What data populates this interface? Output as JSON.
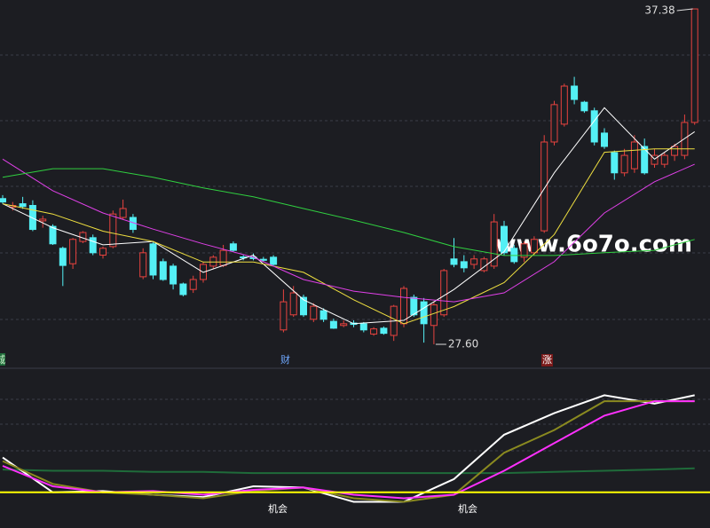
{
  "chart_data": {
    "type": "candlestick",
    "up_color": "#e8433f",
    "down_color": "#54f0f5",
    "ylim": [
      27.29,
      37.64
    ],
    "candles": [
      [
        31.85,
        31.95,
        31.7,
        31.75
      ],
      [
        31.6,
        31.75,
        31.5,
        31.65
      ],
      [
        31.7,
        31.9,
        31.55,
        31.62
      ],
      [
        31.65,
        31.8,
        30.9,
        30.95
      ],
      [
        31.2,
        31.35,
        31.0,
        31.25
      ],
      [
        31.04,
        31.1,
        30.5,
        30.53
      ],
      [
        30.4,
        30.45,
        29.3,
        29.9
      ],
      [
        29.95,
        30.7,
        29.8,
        30.66
      ],
      [
        30.6,
        30.9,
        30.55,
        30.86
      ],
      [
        30.71,
        30.8,
        30.2,
        30.27
      ],
      [
        30.2,
        30.45,
        30.1,
        30.4
      ],
      [
        30.45,
        31.5,
        30.4,
        31.4
      ],
      [
        31.3,
        31.82,
        31.25,
        31.56
      ],
      [
        31.3,
        31.4,
        30.85,
        30.95
      ],
      [
        29.57,
        30.4,
        29.5,
        30.27
      ],
      [
        30.53,
        30.6,
        29.5,
        29.62
      ],
      [
        30.01,
        30.1,
        29.45,
        29.49
      ],
      [
        29.88,
        29.95,
        29.2,
        29.36
      ],
      [
        29.36,
        29.4,
        29.0,
        29.05
      ],
      [
        29.2,
        29.6,
        29.1,
        29.49
      ],
      [
        29.49,
        30.0,
        29.4,
        29.93
      ],
      [
        29.88,
        30.2,
        29.8,
        30.14
      ],
      [
        29.9,
        30.5,
        29.85,
        30.34
      ],
      [
        30.53,
        30.6,
        30.3,
        30.34
      ],
      [
        30.15,
        30.2,
        30.05,
        30.12
      ],
      [
        30.14,
        30.25,
        30.05,
        30.1
      ],
      [
        30.08,
        30.15,
        30.0,
        30.05
      ],
      [
        30.14,
        30.2,
        29.9,
        29.93
      ],
      [
        28.02,
        29.2,
        27.95,
        28.84
      ],
      [
        28.46,
        29.3,
        28.4,
        29.1
      ],
      [
        28.97,
        29.05,
        28.4,
        28.46
      ],
      [
        28.33,
        28.8,
        28.25,
        28.71
      ],
      [
        28.58,
        28.65,
        28.25,
        28.33
      ],
      [
        28.27,
        28.35,
        28.05,
        28.07
      ],
      [
        28.15,
        28.3,
        28.1,
        28.2
      ],
      [
        28.22,
        28.3,
        28.1,
        28.18
      ],
      [
        28.2,
        28.25,
        27.95,
        28.02
      ],
      [
        27.9,
        28.1,
        27.85,
        28.05
      ],
      [
        28.07,
        28.12,
        27.88,
        27.92
      ],
      [
        27.86,
        28.75,
        27.7,
        28.71
      ],
      [
        28.2,
        29.3,
        28.1,
        29.23
      ],
      [
        28.97,
        29.05,
        28.4,
        28.46
      ],
      [
        28.84,
        28.95,
        27.65,
        28.2
      ],
      [
        28.15,
        28.85,
        27.6,
        28.75
      ],
      [
        28.46,
        29.8,
        28.4,
        29.75
      ],
      [
        30.09,
        30.7,
        29.85,
        29.93
      ],
      [
        30.01,
        30.2,
        29.7,
        29.83
      ],
      [
        29.93,
        30.2,
        29.8,
        30.09
      ],
      [
        29.75,
        30.15,
        29.7,
        30.09
      ],
      [
        29.88,
        31.4,
        29.8,
        31.17
      ],
      [
        31.04,
        31.2,
        30.2,
        30.27
      ],
      [
        30.4,
        30.5,
        29.95,
        30.01
      ],
      [
        30.14,
        30.6,
        30.0,
        30.53
      ],
      [
        30.27,
        30.75,
        30.2,
        30.66
      ],
      [
        30.91,
        33.7,
        30.85,
        33.5
      ],
      [
        33.5,
        34.7,
        33.4,
        34.59
      ],
      [
        34.02,
        35.2,
        33.95,
        35.13
      ],
      [
        35.13,
        35.4,
        34.6,
        34.74
      ],
      [
        34.66,
        34.7,
        34.35,
        34.41
      ],
      [
        34.41,
        34.5,
        33.4,
        33.5
      ],
      [
        33.76,
        33.9,
        33.3,
        33.37
      ],
      [
        33.19,
        33.25,
        32.4,
        32.6
      ],
      [
        32.6,
        33.3,
        32.5,
        33.11
      ],
      [
        32.72,
        33.7,
        32.6,
        33.5
      ],
      [
        33.37,
        33.6,
        32.55,
        32.6
      ],
      [
        32.85,
        33.3,
        32.75,
        33.11
      ],
      [
        32.85,
        33.2,
        32.75,
        33.11
      ],
      [
        33.11,
        33.45,
        32.95,
        33.37
      ],
      [
        33.11,
        34.3,
        33.0,
        34.07
      ],
      [
        34.07,
        37.38,
        34.0,
        37.38
      ]
    ],
    "x": [
      0,
      5,
      10,
      15,
      20,
      25,
      30,
      35,
      40,
      45,
      50,
      55,
      60,
      65,
      69
    ],
    "series": [
      {
        "color": "#ffffff",
        "values": [
          31.7,
          31.0,
          30.5,
          30.6,
          29.7,
          30.2,
          28.9,
          28.2,
          28.3,
          29.2,
          30.3,
          32.6,
          34.5,
          33.0,
          33.8
        ]
      },
      {
        "color": "#f0e040",
        "values": [
          31.7,
          31.4,
          30.9,
          30.6,
          30.0,
          30.0,
          29.7,
          28.9,
          28.2,
          28.7,
          29.4,
          30.8,
          33.2,
          33.3,
          33.3
        ]
      },
      {
        "color": "#e040e8",
        "values": [
          33.0,
          32.08,
          31.43,
          30.96,
          30.53,
          30.14,
          29.49,
          29.15,
          28.97,
          28.84,
          29.1,
          30.01,
          31.43,
          32.34,
          32.85
        ]
      },
      {
        "color": "#30d040",
        "values": [
          32.47,
          32.72,
          32.72,
          32.47,
          32.16,
          31.9,
          31.56,
          31.22,
          30.86,
          30.45,
          30.19,
          30.19,
          30.27,
          30.34,
          30.66
        ]
      }
    ],
    "extremes": [
      {
        "value": 37.38,
        "label": "37.38"
      },
      {
        "value": 27.6,
        "label": "27.60"
      }
    ],
    "watermark": "www.6o7o.com",
    "markers": [
      "城",
      "财",
      "涨"
    ],
    "lower": {
      "ylim": [
        0,
        100
      ],
      "series": [
        {
          "color": "#1f6b3a",
          "values": [
            34,
            33,
            33,
            32,
            32,
            31,
            31,
            31,
            31,
            31,
            31,
            32,
            33,
            34,
            35
          ]
        },
        {
          "color": "#ffffff",
          "values": [
            44,
            15,
            16,
            13,
            11,
            20,
            19,
            7,
            7,
            26,
            63,
            81,
            96,
            89,
            96
          ]
        },
        {
          "color": "#8a8a20",
          "values": [
            41,
            22,
            15,
            13,
            10,
            16,
            19,
            10,
            7,
            13,
            48,
            67,
            91,
            91,
            91
          ]
        },
        {
          "color": "#ff30ff",
          "values": [
            37,
            20,
            15,
            16,
            13,
            17,
            19,
            13,
            10,
            13,
            33,
            56,
            79,
            91,
            91
          ]
        }
      ],
      "hline": {
        "value": 15,
        "color": "#ffff00"
      },
      "signals": [
        "机会",
        "机会"
      ]
    }
  }
}
